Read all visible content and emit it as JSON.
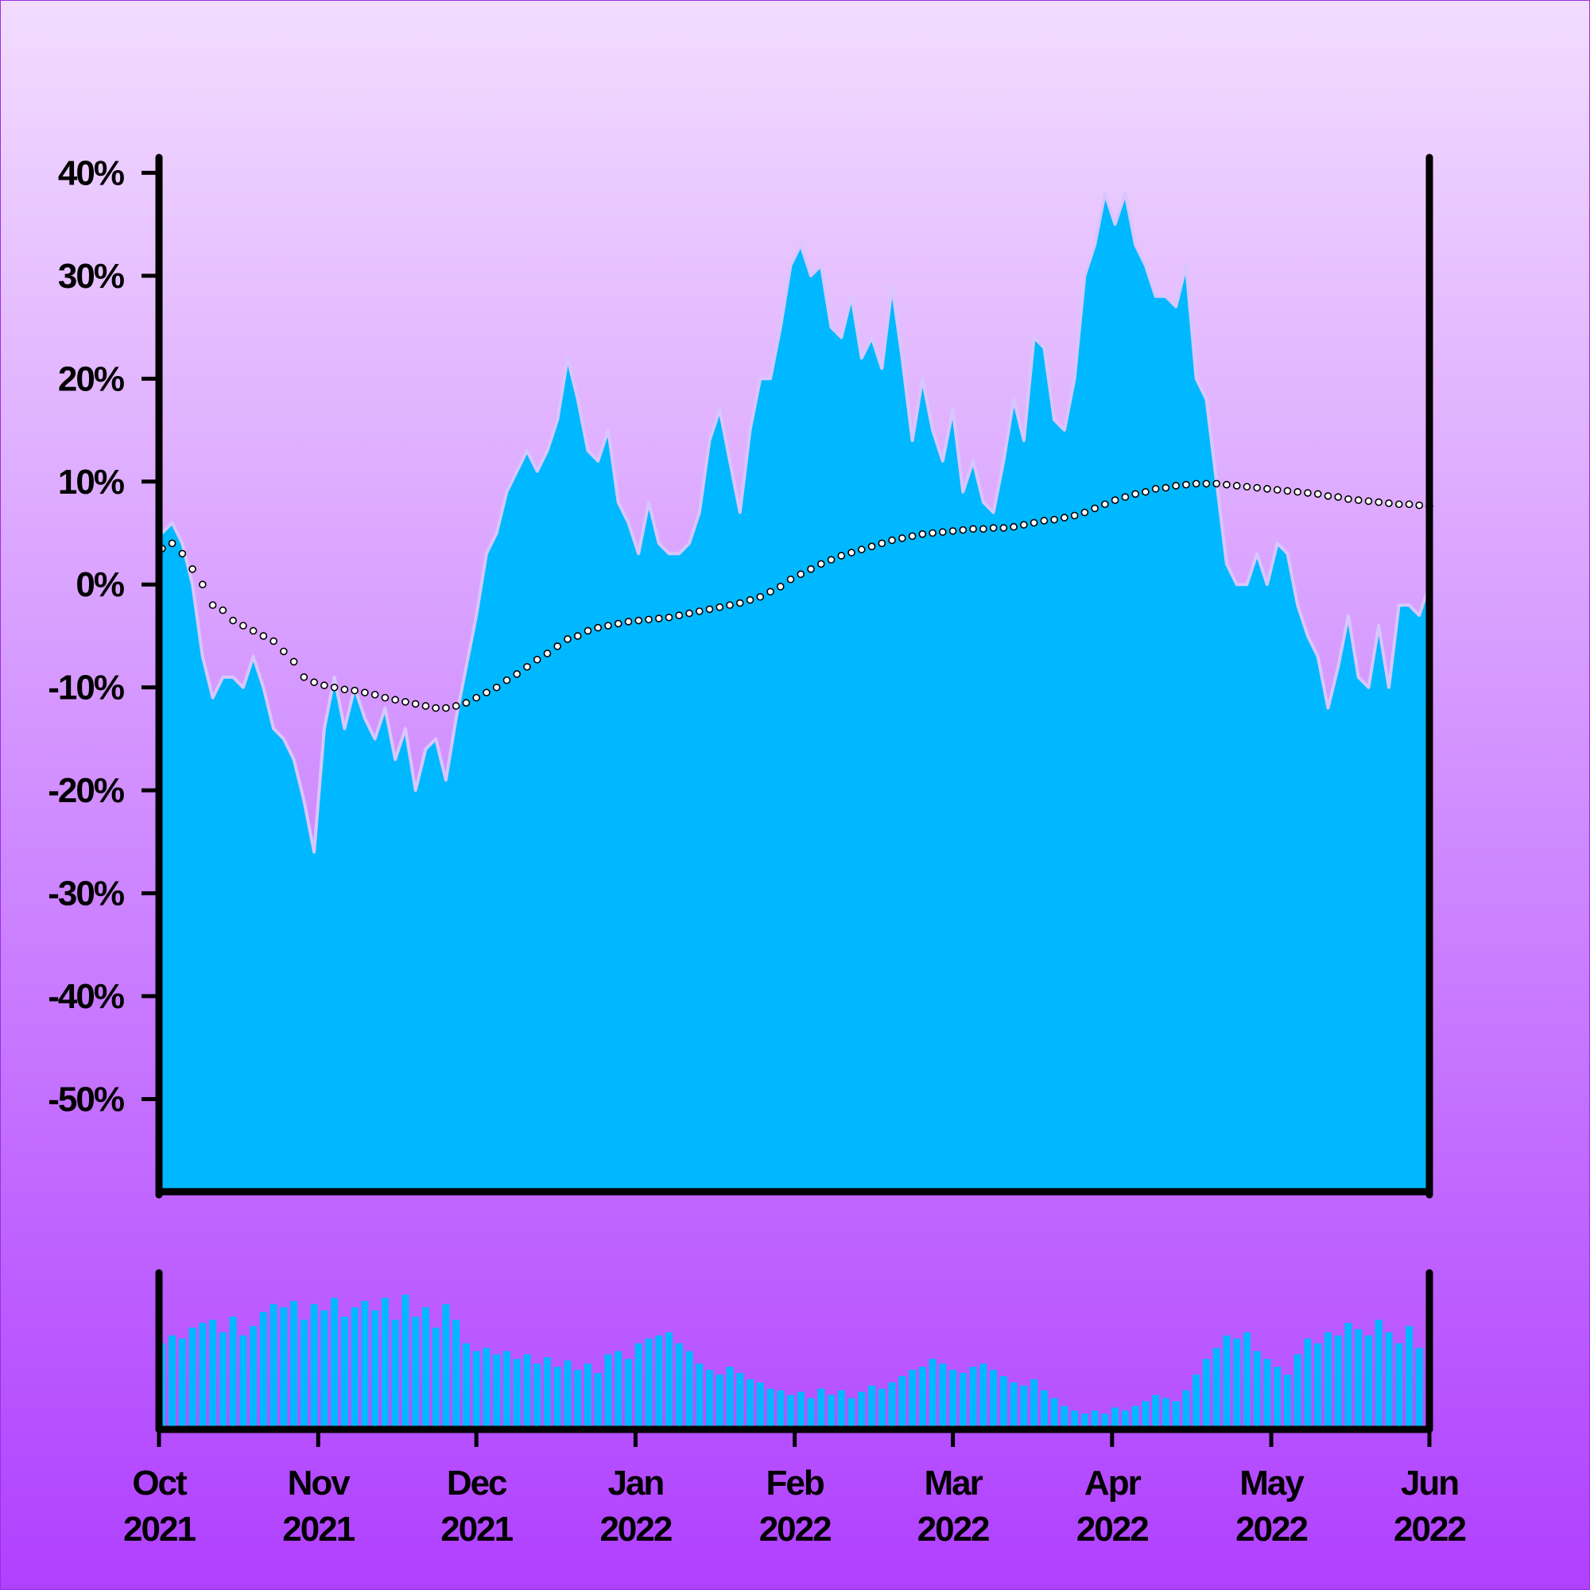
{
  "chart_data": [
    {
      "type": "area",
      "series": [
        {
          "color": "#00b8ff",
          "values": [
            5,
            6,
            4,
            0,
            -7,
            -11,
            -9,
            -9,
            -10,
            -7,
            -10,
            -14,
            -15,
            -17,
            -21,
            -26,
            -14,
            -9,
            -14,
            -10,
            -13,
            -15,
            -12,
            -17,
            -14,
            -20,
            -16,
            -15,
            -19,
            -13,
            -8,
            -3,
            3,
            5,
            9,
            11,
            13,
            11,
            13,
            16,
            22,
            18,
            13,
            12,
            15,
            8,
            6,
            3,
            8,
            4,
            3,
            3,
            4,
            7,
            14,
            17,
            12,
            7,
            15,
            20,
            20,
            25,
            31,
            33,
            30,
            31,
            25,
            24,
            28,
            22,
            24,
            21,
            29,
            22,
            14,
            20,
            15,
            12,
            17,
            9,
            12,
            8,
            7,
            12,
            18,
            14,
            24,
            23,
            16,
            15,
            20,
            30,
            33,
            38,
            35,
            38,
            33,
            31,
            28,
            28,
            27,
            31,
            20,
            18,
            10,
            2,
            0,
            0,
            3,
            0,
            4,
            3,
            -2,
            -5,
            -7,
            -12,
            -8,
            -3,
            -9,
            -10,
            -4,
            -10,
            -2,
            -2,
            -3,
            0
          ]
        },
        {
          "color": "#ffffff",
          "values": [
            3.5,
            4,
            3,
            1.5,
            0,
            -2,
            -2.5,
            -3.5,
            -4,
            -4.5,
            -5,
            -5.5,
            -6.5,
            -7.5,
            -9,
            -9.5,
            -9.8,
            -10,
            -10.2,
            -10.3,
            -10.5,
            -10.7,
            -11,
            -11.2,
            -11.4,
            -11.6,
            -11.8,
            -12,
            -12,
            -11.8,
            -11.5,
            -11,
            -10.5,
            -10,
            -9.3,
            -8.7,
            -8,
            -7.3,
            -6.7,
            -6,
            -5.3,
            -5,
            -4.5,
            -4.2,
            -4,
            -3.8,
            -3.6,
            -3.5,
            -3.4,
            -3.3,
            -3.2,
            -3,
            -2.8,
            -2.6,
            -2.4,
            -2.2,
            -2,
            -1.8,
            -1.5,
            -1.2,
            -0.7,
            -0.2,
            0.5,
            1,
            1.5,
            2,
            2.4,
            2.8,
            3.1,
            3.4,
            3.7,
            4,
            4.3,
            4.5,
            4.7,
            4.9,
            5,
            5.1,
            5.2,
            5.3,
            5.4,
            5.4,
            5.5,
            5.5,
            5.6,
            5.8,
            6,
            6.2,
            6.3,
            6.5,
            6.7,
            7,
            7.4,
            7.8,
            8.2,
            8.5,
            8.8,
            9,
            9.3,
            9.4,
            9.6,
            9.7,
            9.8,
            9.8,
            9.8,
            9.7,
            9.6,
            9.5,
            9.4,
            9.3,
            9.2,
            9.1,
            9,
            8.9,
            8.8,
            8.6,
            8.5,
            8.3,
            8.2,
            8.1,
            8,
            7.9,
            7.8,
            7.8,
            7.7,
            7.6
          ]
        }
      ],
      "xlim": [
        -0.3,
        125
      ],
      "ylim": [
        -59,
        41.5
      ],
      "yticks": [
        {
          "value": 40,
          "label": "40%"
        },
        {
          "value": 30,
          "label": "30%"
        },
        {
          "value": 20,
          "label": "20%"
        },
        {
          "value": 10,
          "label": "10%"
        },
        {
          "value": 0,
          "label": "0%"
        },
        {
          "value": -10,
          "label": "-10%"
        },
        {
          "value": -20,
          "label": "-20%"
        },
        {
          "value": -30,
          "label": "-30%"
        },
        {
          "value": -40,
          "label": "-40%"
        },
        {
          "value": -50,
          "label": "-50%"
        }
      ]
    },
    {
      "type": "bar",
      "color": "#00b8ff",
      "values": [
        55,
        60,
        58,
        65,
        68,
        70,
        62,
        72,
        60,
        66,
        75,
        80,
        78,
        82,
        70,
        80,
        76,
        84,
        72,
        78,
        82,
        76,
        84,
        70,
        86,
        72,
        78,
        65,
        80,
        70,
        55,
        50,
        52,
        48,
        50,
        45,
        48,
        42,
        46,
        40,
        44,
        38,
        42,
        36,
        48,
        50,
        45,
        55,
        58,
        60,
        62,
        55,
        50,
        42,
        38,
        35,
        40,
        36,
        32,
        30,
        26,
        25,
        22,
        24,
        20,
        26,
        22,
        25,
        20,
        24,
        28,
        26,
        30,
        34,
        38,
        40,
        45,
        42,
        38,
        36,
        40,
        42,
        38,
        34,
        30,
        28,
        32,
        25,
        20,
        15,
        12,
        10,
        12,
        10,
        14,
        12,
        15,
        18,
        22,
        20,
        18,
        25,
        35,
        45,
        52,
        60,
        58,
        62,
        50,
        45,
        40,
        35,
        48,
        58,
        55,
        62,
        60,
        68,
        64,
        60,
        70,
        62,
        55,
        66,
        52,
        45
      ],
      "xlim": [
        -0.3,
        125
      ],
      "ylim": [
        0,
        100
      ],
      "xticks": [
        {
          "value": -0.3,
          "label": "Oct 2021"
        },
        {
          "value": 15.4,
          "label": "Nov 2021"
        },
        {
          "value": 31,
          "label": "Dec 2021"
        },
        {
          "value": 46.7,
          "label": "Jan 2022"
        },
        {
          "value": 62.4,
          "label": "Feb 2022"
        },
        {
          "value": 78,
          "label": "Mar 2022"
        },
        {
          "value": 93.7,
          "label": "Apr 2022"
        },
        {
          "value": 109.4,
          "label": "May 2022"
        },
        {
          "value": 125,
          "label": "Jun 2022"
        }
      ]
    }
  ]
}
